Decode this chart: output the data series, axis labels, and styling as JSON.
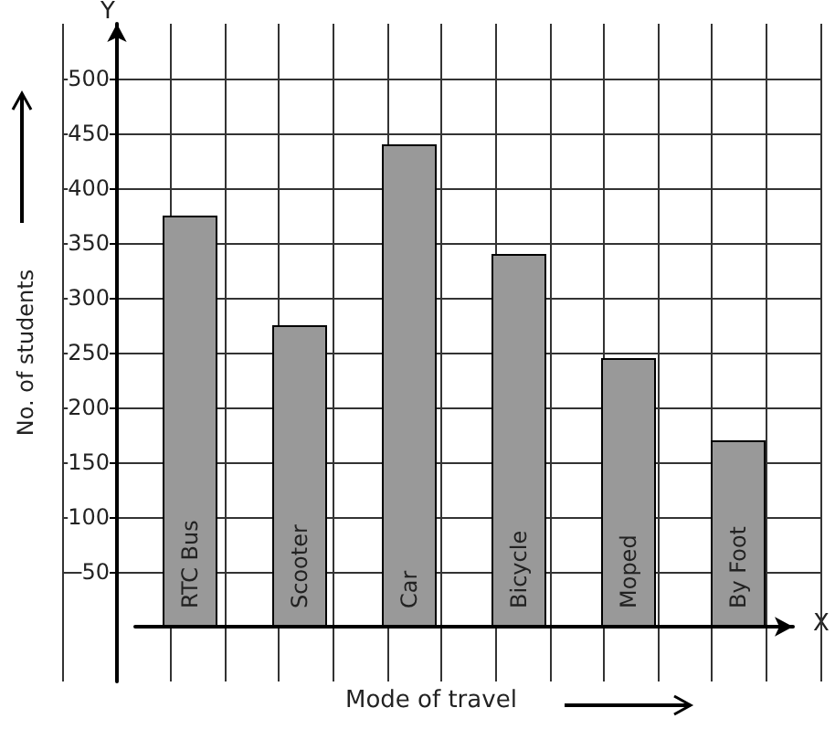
{
  "chart_data": {
    "type": "bar",
    "xlabel": "Mode of travel",
    "ylabel": "No. of students",
    "categories": [
      "RTC Bus",
      "Scooter",
      "Car",
      "Bicycle",
      "Moped",
      "By Foot"
    ],
    "values": [
      375,
      275,
      440,
      340,
      245,
      170
    ],
    "color": "#999999",
    "ylim": [
      -50,
      550
    ],
    "yticks": [
      50,
      100,
      150,
      200,
      250,
      300,
      350,
      400,
      450,
      500
    ],
    "grid": true,
    "annotations": [
      "X",
      "Y"
    ]
  }
}
